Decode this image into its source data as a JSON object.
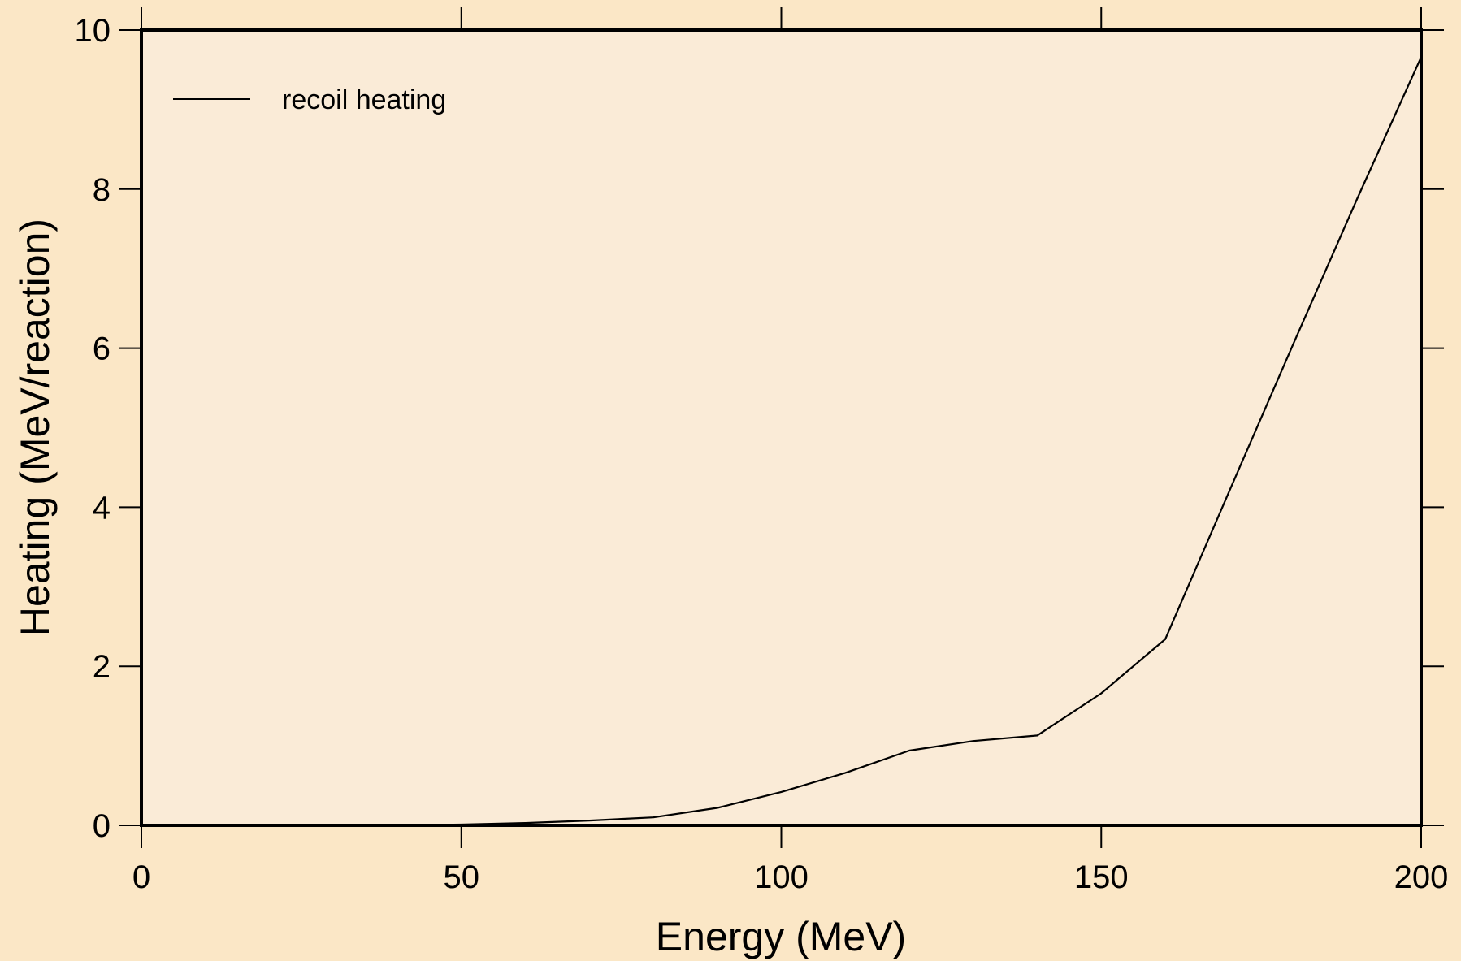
{
  "colors": {
    "page_background": "#fbe7c6",
    "plot_background": "#faebd7",
    "line": "#000000",
    "frame": "#000000"
  },
  "chart_data": {
    "type": "line",
    "title": "",
    "xlabel": "Energy (MeV)",
    "ylabel": "Heating (MeV/reaction)",
    "xlim": [
      0,
      200
    ],
    "ylim": [
      0,
      10
    ],
    "xticks": [
      0,
      50,
      100,
      150,
      200
    ],
    "yticks": [
      0,
      2,
      4,
      6,
      8,
      10
    ],
    "xtick_labels": [
      "0",
      "50",
      "100",
      "150",
      "200"
    ],
    "ytick_labels": [
      "0",
      "2",
      "4",
      "6",
      "8",
      "10"
    ],
    "grid": false,
    "legend": {
      "position": "top-left",
      "entries": [
        "recoil heating"
      ]
    },
    "series": [
      {
        "name": "recoil heating",
        "x": [
          0,
          10,
          20,
          30,
          40,
          50,
          60,
          70,
          80,
          90,
          100,
          110,
          120,
          130,
          140,
          150,
          160,
          170,
          180,
          190,
          200
        ],
        "y": [
          0,
          0,
          0,
          0,
          0,
          0.01,
          0.03,
          0.06,
          0.1,
          0.22,
          0.42,
          0.66,
          0.94,
          1.06,
          1.13,
          1.66,
          2.34,
          4.2,
          6.05,
          7.88,
          9.66
        ]
      }
    ]
  }
}
